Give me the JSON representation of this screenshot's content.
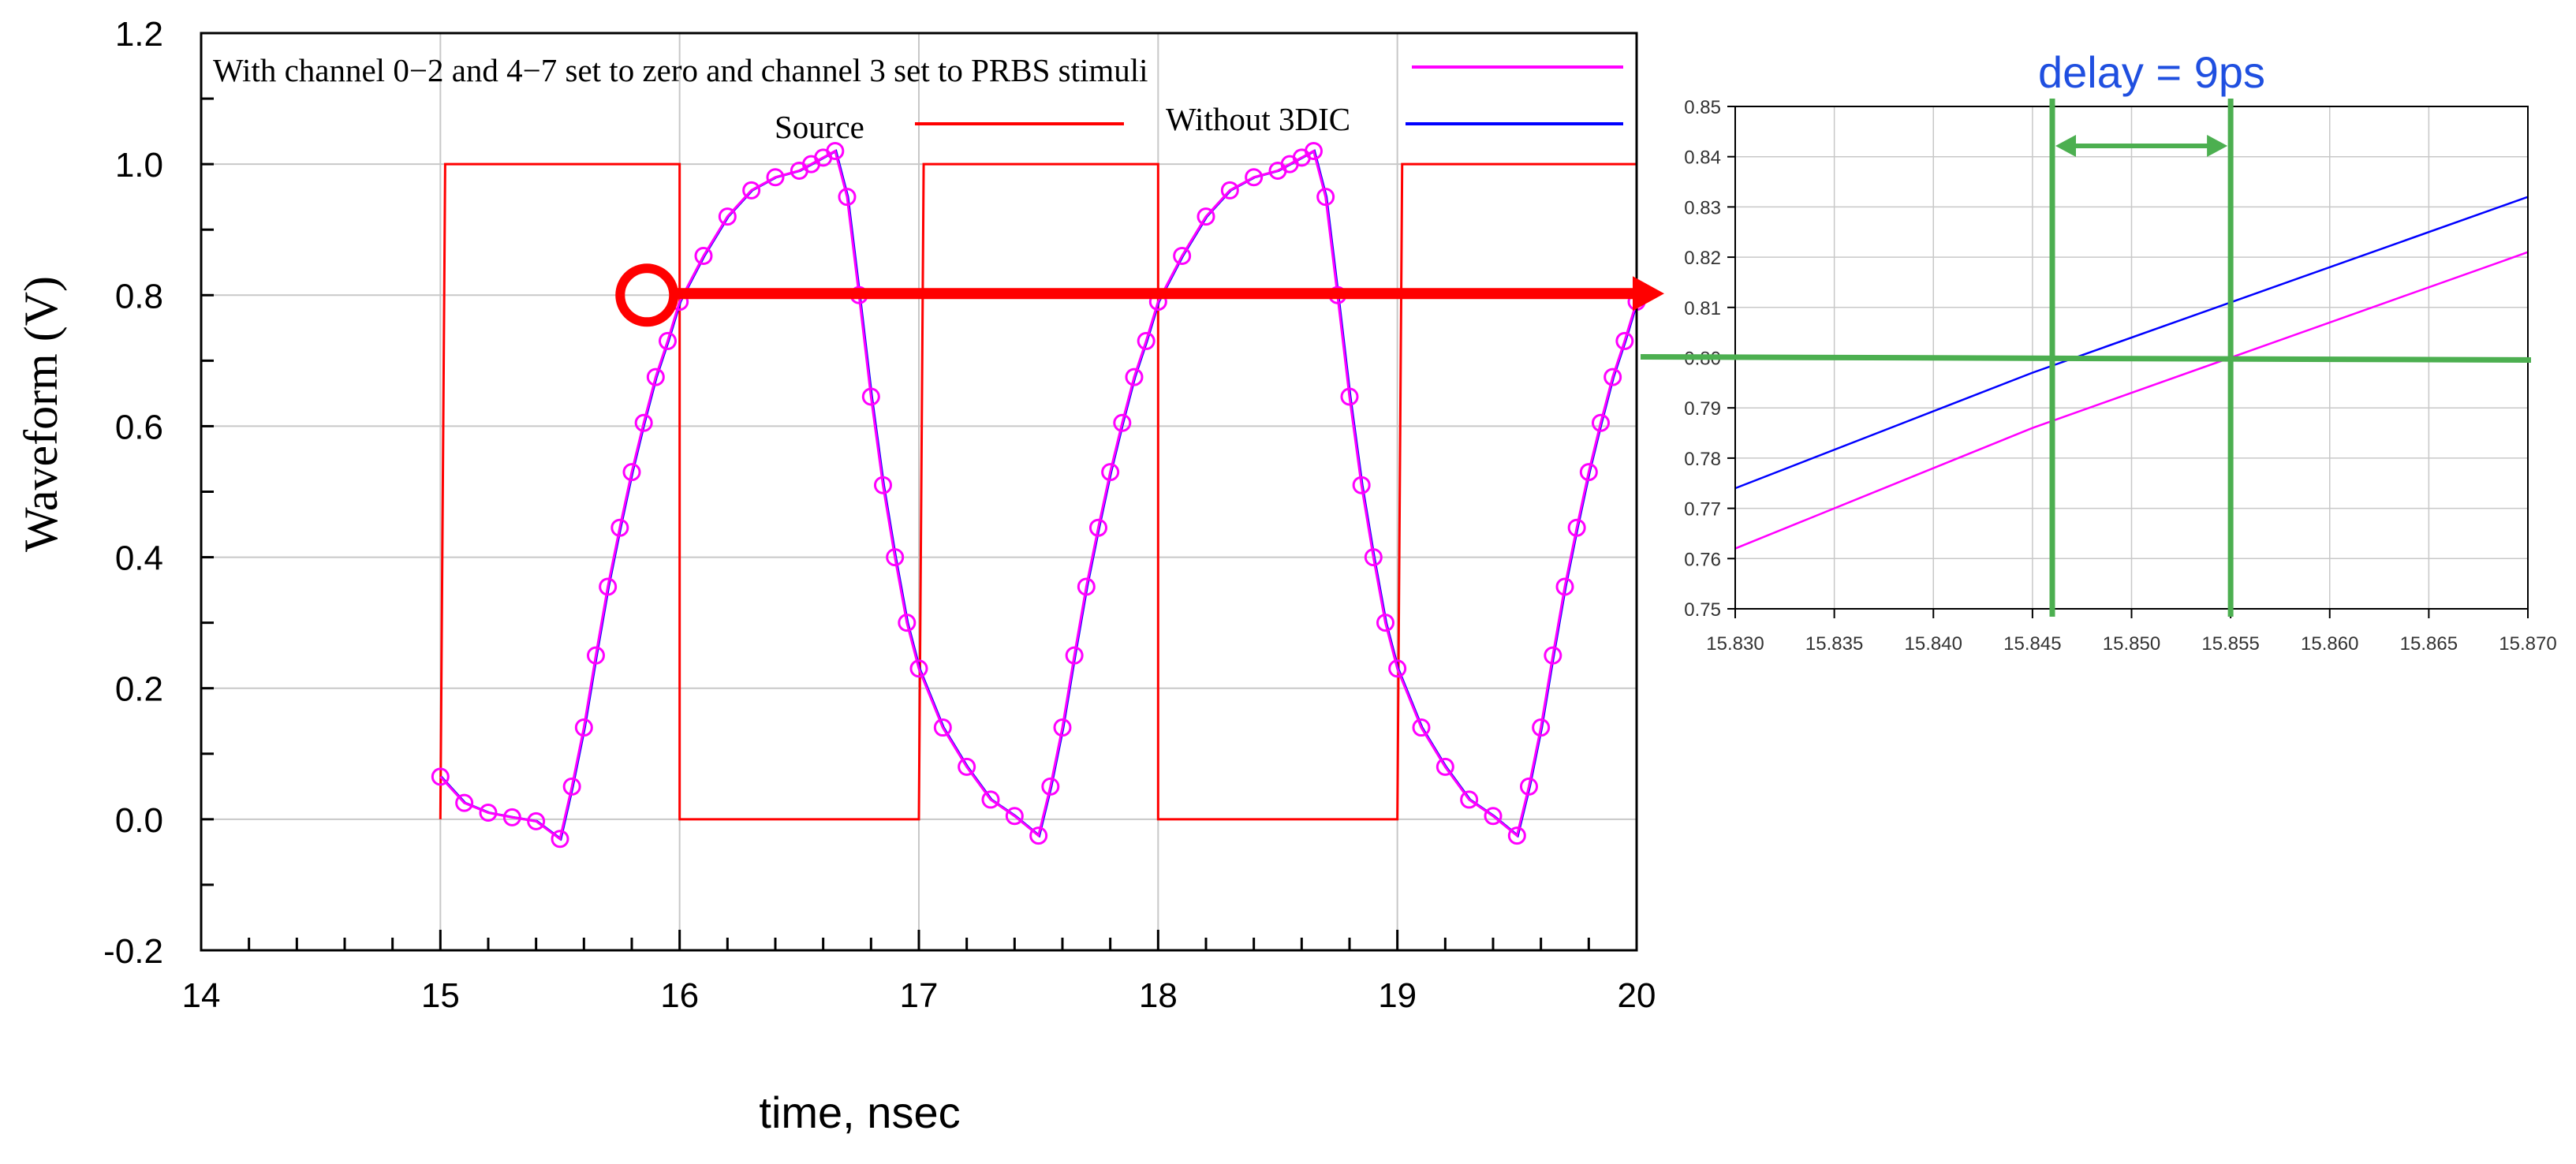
{
  "colors": {
    "source": "#ff0000",
    "with_channel": "#ff00ff",
    "without_3dic": "#0000ff",
    "marker": "#ff0000",
    "delay_lines": "#4caf50",
    "delay_label": "#1f4fe0",
    "grid": "#c8c8c8"
  },
  "chart_data": [
    {
      "type": "line",
      "title": "",
      "xlabel": "time, nsec",
      "ylabel": "Waveform (V)",
      "xlim": [
        14,
        20
      ],
      "ylim": [
        -0.2,
        1.2
      ],
      "xticks": [
        "14",
        "15",
        "16",
        "17",
        "18",
        "19",
        "20"
      ],
      "yticks": [
        "-0.2",
        "0.0",
        "0.2",
        "0.4",
        "0.6",
        "0.8",
        "1.0",
        "1.2"
      ],
      "grid": true,
      "legend": [
        {
          "name": "With channel 0−2 and 4−7 set to zero and channel 3 set to PRBS stimuli"
        },
        {
          "name": "Source"
        },
        {
          "name": "Without 3DIC"
        }
      ],
      "series": [
        {
          "name": "Source",
          "x": [
            15.0,
            15.02,
            16.0,
            16.0,
            17.0,
            17.02,
            18.0,
            18.0,
            19.0,
            19.02,
            20.0
          ],
          "y": [
            0.0,
            1.0,
            1.0,
            0.0,
            0.0,
            1.0,
            1.0,
            0.0,
            0.0,
            1.0,
            1.0
          ]
        },
        {
          "name": "With channel 0−2 and 4−7 set to zero and channel 3 set to PRBS stimuli",
          "marker": "circle",
          "x": [
            15.0,
            15.1,
            15.2,
            15.3,
            15.4,
            15.5,
            15.55,
            15.6,
            15.65,
            15.7,
            15.75,
            15.8,
            15.85,
            15.9,
            15.95,
            16.0,
            16.1,
            16.2,
            16.3,
            16.4,
            16.5,
            16.55,
            16.6,
            16.65,
            16.7,
            16.75,
            16.8,
            16.85,
            16.9,
            16.95,
            17.0,
            17.1,
            17.2,
            17.3,
            17.4,
            17.5,
            17.55,
            17.6,
            17.65,
            17.7,
            17.75,
            17.8,
            17.85,
            17.9,
            17.95,
            18.0,
            18.1,
            18.2,
            18.3,
            18.4,
            18.5,
            18.55,
            18.6,
            18.65,
            18.7,
            18.75,
            18.8,
            18.85,
            18.9,
            18.95,
            19.0,
            19.1,
            19.2,
            19.3,
            19.4,
            19.5,
            19.55,
            19.6,
            19.65,
            19.7,
            19.75,
            19.8,
            19.85,
            19.9,
            19.95,
            20.0
          ],
          "y": [
            0.065,
            0.025,
            0.01,
            0.003,
            -0.003,
            -0.03,
            0.05,
            0.14,
            0.25,
            0.355,
            0.445,
            0.53,
            0.605,
            0.675,
            0.73,
            0.79,
            0.86,
            0.92,
            0.96,
            0.98,
            0.99,
            1.0,
            1.01,
            1.02,
            0.95,
            0.8,
            0.645,
            0.51,
            0.4,
            0.3,
            0.23,
            0.14,
            0.08,
            0.03,
            0.005,
            -0.025,
            0.05,
            0.14,
            0.25,
            0.355,
            0.445,
            0.53,
            0.605,
            0.675,
            0.73,
            0.79,
            0.86,
            0.92,
            0.96,
            0.98,
            0.99,
            1.0,
            1.01,
            1.02,
            0.95,
            0.8,
            0.645,
            0.51,
            0.4,
            0.3,
            0.23,
            0.14,
            0.08,
            0.03,
            0.005,
            -0.025,
            0.05,
            0.14,
            0.25,
            0.355,
            0.445,
            0.53,
            0.605,
            0.675,
            0.73,
            0.79
          ]
        }
      ],
      "annotation": {
        "type": "circle-and-arrow",
        "at_x": 15.88,
        "at_y": 0.8
      }
    },
    {
      "type": "line",
      "title": "",
      "xlim": [
        15.83,
        15.87
      ],
      "ylim": [
        0.75,
        0.85
      ],
      "xticks": [
        "15.830",
        "15.835",
        "15.840",
        "15.845",
        "15.850",
        "15.855",
        "15.860",
        "15.865",
        "15.870"
      ],
      "yticks": [
        "0.75",
        "0.76",
        "0.77",
        "0.78",
        "0.79",
        "0.80",
        "0.81",
        "0.82",
        "0.83",
        "0.84",
        "0.85"
      ],
      "grid": true,
      "series": [
        {
          "name": "Without 3DIC",
          "x": [
            15.83,
            15.845,
            15.87
          ],
          "y": [
            0.774,
            0.797,
            0.832
          ]
        },
        {
          "name": "With channel 0−2 and 4−7 set to zero and channel 3 set to PRBS stimuli",
          "x": [
            15.83,
            15.845,
            15.87
          ],
          "y": [
            0.762,
            0.786,
            0.821
          ]
        }
      ],
      "delay": {
        "label": "delay = 9ps",
        "x1": 15.846,
        "x2": 15.855,
        "level": 0.8
      }
    }
  ]
}
